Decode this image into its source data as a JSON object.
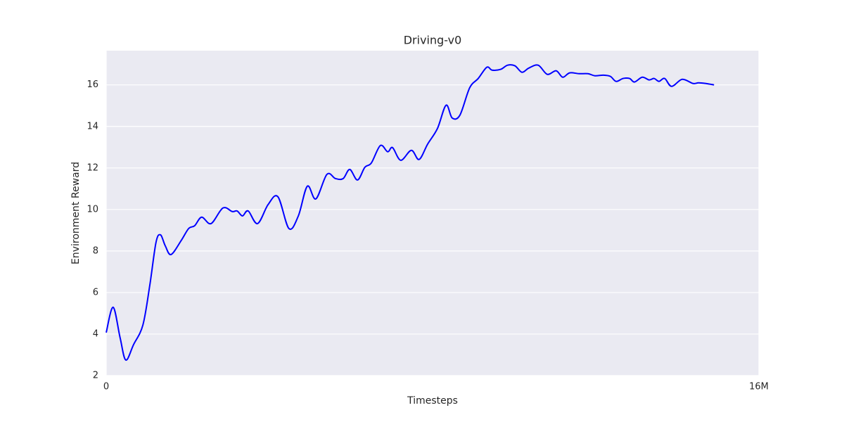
{
  "chart_data": {
    "type": "line",
    "title": "Driving-v0",
    "x_label": "Timesteps",
    "y_label": "Environment Reward",
    "xlim": [
      0,
      16000000
    ],
    "ylim": [
      2,
      17.65
    ],
    "xticks": [
      0,
      {
        "value": 16000000,
        "label": "16M"
      }
    ],
    "yticks": [
      2,
      4,
      6,
      8,
      10,
      12,
      14,
      16
    ],
    "grid": true,
    "x": [
      0,
      170000,
      340000,
      480000,
      670000,
      900000,
      1070000,
      1220000,
      1330000,
      1450000,
      1590000,
      1840000,
      2020000,
      2170000,
      2340000,
      2570000,
      2860000,
      3090000,
      3210000,
      3340000,
      3480000,
      3710000,
      3970000,
      4210000,
      4480000,
      4710000,
      4930000,
      5140000,
      5410000,
      5620000,
      5810000,
      5970000,
      6160000,
      6340000,
      6500000,
      6720000,
      6900000,
      7020000,
      7220000,
      7480000,
      7670000,
      7880000,
      8120000,
      8330000,
      8480000,
      8670000,
      8910000,
      9120000,
      9330000,
      9460000,
      9670000,
      9840000,
      10020000,
      10190000,
      10360000,
      10590000,
      10810000,
      11030000,
      11190000,
      11360000,
      11590000,
      11810000,
      11980000,
      12190000,
      12360000,
      12500000,
      12670000,
      12830000,
      12950000,
      13140000,
      13310000,
      13430000,
      13550000,
      13690000,
      13860000,
      14120000,
      14380000,
      14520000,
      14690000,
      14900000
    ],
    "series": [
      {
        "name": "reward",
        "color": "#0000ff",
        "values": [
          4.07,
          5.29,
          3.83,
          2.75,
          3.49,
          4.44,
          6.37,
          8.41,
          8.78,
          8.24,
          7.83,
          8.51,
          9.08,
          9.22,
          9.63,
          9.32,
          10.07,
          9.9,
          9.93,
          9.69,
          9.93,
          9.32,
          10.24,
          10.61,
          9.08,
          9.69,
          11.12,
          10.51,
          11.69,
          11.49,
          11.49,
          11.93,
          11.42,
          12.03,
          12.24,
          13.08,
          12.78,
          12.98,
          12.37,
          12.85,
          12.41,
          13.15,
          13.9,
          15.02,
          14.41,
          14.54,
          15.86,
          16.31,
          16.85,
          16.71,
          16.75,
          16.95,
          16.92,
          16.61,
          16.81,
          16.95,
          16.51,
          16.68,
          16.37,
          16.58,
          16.54,
          16.54,
          16.44,
          16.47,
          16.41,
          16.17,
          16.31,
          16.31,
          16.14,
          16.37,
          16.24,
          16.31,
          16.17,
          16.31,
          15.93,
          16.27,
          16.07,
          16.1,
          16.07,
          16.0
        ]
      }
    ]
  }
}
